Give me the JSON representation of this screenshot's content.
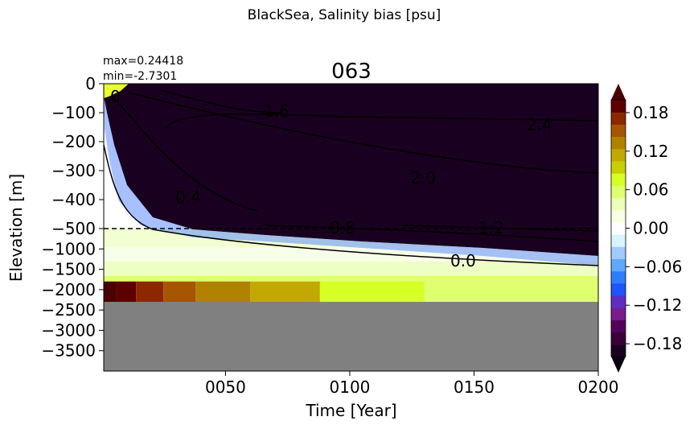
{
  "chart_data": {
    "type": "heatmap",
    "suptitle": "BlackSea, Salinity bias [psu]",
    "title": "063",
    "stats": {
      "max": "max=0.24418",
      "min": "min=-2.7301"
    },
    "xlabel": "Time [Year]",
    "ylabel": "Elevation [m]",
    "xlim": [
      1,
      200
    ],
    "x_ticks": [
      {
        "value": 50,
        "label": "0050"
      },
      {
        "value": 100,
        "label": "0100"
      },
      {
        "value": 150,
        "label": "0150"
      },
      {
        "value": 200,
        "label": "0200"
      }
    ],
    "y_ticks_upper": [
      {
        "value": 0,
        "label": "0"
      },
      {
        "value": -100,
        "label": "−100"
      },
      {
        "value": -200,
        "label": "−200"
      },
      {
        "value": -300,
        "label": "−300"
      },
      {
        "value": -400,
        "label": "−400"
      },
      {
        "value": -500,
        "label": "−500"
      }
    ],
    "y_ticks_lower": [
      {
        "value": -1000,
        "label": "−1000"
      },
      {
        "value": -1500,
        "label": "−1500"
      },
      {
        "value": -2000,
        "label": "−2000"
      },
      {
        "value": -2500,
        "label": "−2500"
      },
      {
        "value": -3000,
        "label": "−3000"
      },
      {
        "value": -3500,
        "label": "−3500"
      }
    ],
    "y_axis_note": "linear 0 to -500 above dashed line, linear -500 to -4000 below",
    "colorbar": {
      "vmin": -0.2,
      "vmax": 0.2,
      "levels": 21,
      "extend": "both",
      "ticks": [
        {
          "value": 0.18,
          "label": "0.18"
        },
        {
          "value": 0.12,
          "label": "0.12"
        },
        {
          "value": 0.06,
          "label": "0.06"
        },
        {
          "value": 0.0,
          "label": "0.00"
        },
        {
          "value": -0.06,
          "label": "−0.06"
        },
        {
          "value": -0.12,
          "label": "−0.12"
        },
        {
          "value": -0.18,
          "label": "−0.18"
        }
      ],
      "colors": [
        "#1a0020",
        "#3a0038",
        "#55005e",
        "#7a1c8a",
        "#5e2ec0",
        "#1f54ff",
        "#2f7dff",
        "#5ea8ff",
        "#9fcbff",
        "#d8f4ff",
        "#ffffff",
        "#f6ffe0",
        "#ecffb8",
        "#deff6e",
        "#d6ff26",
        "#c8ce00",
        "#c2a800",
        "#b08200",
        "#a65500",
        "#8c2800",
        "#5c0000"
      ],
      "under_color": "#0b0010",
      "over_color": "#4a0000"
    },
    "contour_labels": [
      "0",
      "1.6",
      "2.4",
      "2.0",
      "0.4",
      "0.8",
      "1.2",
      "0.0"
    ],
    "bottom_bands": [
      {
        "x_start": 1,
        "x_end": 6,
        "value": 0.25
      },
      {
        "x_start": 6,
        "x_end": 14,
        "value": 0.2
      },
      {
        "x_start": 14,
        "x_end": 25,
        "value": 0.17
      },
      {
        "x_start": 25,
        "x_end": 38,
        "value": 0.15
      },
      {
        "x_start": 38,
        "x_end": 60,
        "value": 0.13
      },
      {
        "x_start": 60,
        "x_end": 88,
        "value": 0.11
      },
      {
        "x_start": 88,
        "x_end": 130,
        "value": 0.08
      },
      {
        "x_start": 130,
        "x_end": 200,
        "value": 0.06
      }
    ],
    "no_data_below": -2300,
    "no_data_color": "#808080",
    "grid": false
  }
}
